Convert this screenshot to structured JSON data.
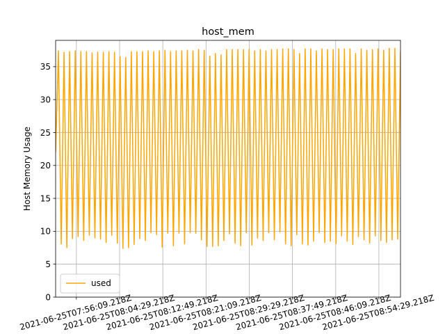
{
  "chart_data": {
    "type": "line",
    "title": "host_mem",
    "xlabel": "",
    "ylabel": "Host Memory Usage",
    "ylim": [
      0,
      39
    ],
    "y_ticks": [
      0,
      5,
      10,
      15,
      20,
      25,
      30,
      35
    ],
    "x_start": "2021-06-25T07:52:09.218Z",
    "x_end": "2021-06-25T08:58:39.218Z",
    "x_ticks": [
      "2021-06-25T07:56:09.218Z",
      "2021-06-25T08:04:29.218Z",
      "2021-06-25T08:12:49.218Z",
      "2021-06-25T08:21:09.218Z",
      "2021-06-25T08:29:29.218Z",
      "2021-06-25T08:37:49.218Z",
      "2021-06-25T08:46:09.218Z",
      "2021-06-25T08:54:29.218Z"
    ],
    "grid": true,
    "legend_position": "lower-left",
    "sample_interval_seconds": 10,
    "series": [
      {
        "name": "used",
        "color": "#ffa500",
        "peaks": [
          37.4,
          37.2,
          37.3,
          37.4,
          37.3,
          37.3,
          37.1,
          37.2,
          37.2,
          37.3,
          37.2,
          36.5,
          36.4,
          37.3,
          37.3,
          37.3,
          37.4,
          37.3,
          37.4,
          37.5,
          37.3,
          37.4,
          37.4,
          37.5,
          37.4,
          37.6,
          37.5,
          36.6,
          37.0,
          36.8,
          37.6,
          37.6,
          37.6,
          37.6,
          37.6,
          37.4,
          37.6,
          37.4,
          37.6,
          37.6,
          37.7,
          37.7,
          37.6,
          37.0,
          37.7,
          37.7,
          37.4,
          37.7,
          37.6,
          37.6,
          37.7,
          37.7,
          37.7,
          37.0,
          37.7,
          37.5,
          37.6,
          37.7,
          37.5,
          37.8,
          37.8,
          37.3
        ],
        "troughs": [
          8.1,
          7.5,
          8.9,
          9.2,
          8.6,
          9.4,
          9.0,
          8.8,
          8.3,
          9.4,
          8.2,
          7.4,
          7.5,
          8.0,
          8.9,
          8.6,
          9.8,
          9.5,
          7.6,
          9.7,
          7.8,
          9.7,
          8.1,
          9.8,
          9.7,
          8.7,
          7.7,
          7.7,
          7.8,
          8.6,
          9.6,
          8.2,
          7.8,
          9.8,
          7.9,
          9.0,
          8.6,
          9.8,
          8.7,
          9.9,
          8.1,
          7.8,
          9.5,
          8.1,
          7.9,
          8.5,
          9.8,
          8.3,
          8.5,
          8.1,
          9.3,
          8.5,
          8.0,
          9.2,
          8.7,
          8.2,
          9.3,
          8.6,
          8.3,
          8.7,
          8.8
        ]
      }
    ]
  }
}
